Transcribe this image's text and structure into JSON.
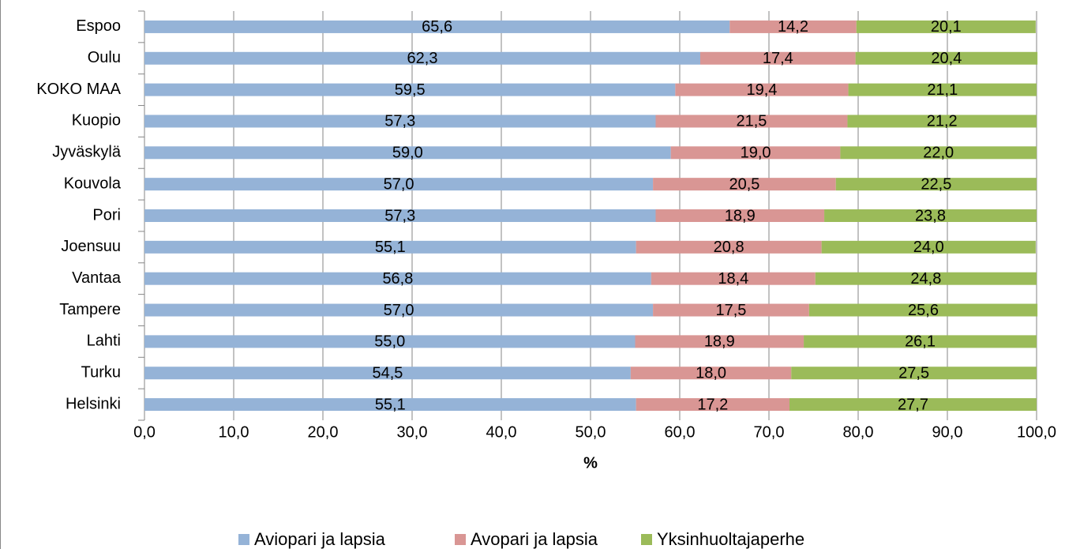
{
  "chart_data": {
    "type": "stacked-bar-horizontal",
    "categories": [
      "Espoo",
      "Oulu",
      "KOKO MAA",
      "Kuopio",
      "Jyväskylä",
      "Kouvola",
      "Pori",
      "Joensuu",
      "Vantaa",
      "Tampere",
      "Lahti",
      "Turku",
      "Helsinki"
    ],
    "series": [
      {
        "name": "Aviopari ja lapsia",
        "color": "#95b3d7",
        "values": [
          65.6,
          62.3,
          59.5,
          57.3,
          59.0,
          57.0,
          57.3,
          55.1,
          56.8,
          57.0,
          55.0,
          54.5,
          55.1
        ],
        "value_labels": [
          "65,6",
          "62,3",
          "59,5",
          "57,3",
          "59,0",
          "57,0",
          "57,3",
          "55,1",
          "56,8",
          "57,0",
          "55,0",
          "54,5",
          "55,1"
        ]
      },
      {
        "name": "Avopari ja lapsia",
        "color": "#d99694",
        "values": [
          14.2,
          17.4,
          19.4,
          21.5,
          19.0,
          20.5,
          18.9,
          20.8,
          18.4,
          17.5,
          18.9,
          18.0,
          17.2
        ],
        "value_labels": [
          "14,2",
          "17,4",
          "19,4",
          "21,5",
          "19,0",
          "20,5",
          "18,9",
          "20,8",
          "18,4",
          "17,5",
          "18,9",
          "18,0",
          "17,2"
        ]
      },
      {
        "name": "Yksinhuoltajaperhe",
        "color": "#9bbb59",
        "values": [
          20.1,
          20.4,
          21.1,
          21.2,
          22.0,
          22.5,
          23.8,
          24.0,
          24.8,
          25.6,
          26.1,
          27.5,
          27.7
        ],
        "value_labels": [
          "20,1",
          "20,4",
          "21,1",
          "21,2",
          "22,0",
          "22,5",
          "23,8",
          "24,0",
          "24,8",
          "25,6",
          "26,1",
          "27,5",
          "27,7"
        ]
      }
    ],
    "xlabel": "%",
    "xlim": [
      0,
      100
    ],
    "xticks": [
      {
        "value": 0,
        "label": "0,0"
      },
      {
        "value": 10,
        "label": "10,0"
      },
      {
        "value": 20,
        "label": "20,0"
      },
      {
        "value": 30,
        "label": "30,0"
      },
      {
        "value": 40,
        "label": "40,0"
      },
      {
        "value": 50,
        "label": "50,0"
      },
      {
        "value": 60,
        "label": "60,0"
      },
      {
        "value": 70,
        "label": "70,0"
      },
      {
        "value": 80,
        "label": "80,0"
      },
      {
        "value": 90,
        "label": "90,0"
      },
      {
        "value": 100,
        "label": "100,0"
      }
    ],
    "grid": true,
    "legend": "bottom"
  }
}
